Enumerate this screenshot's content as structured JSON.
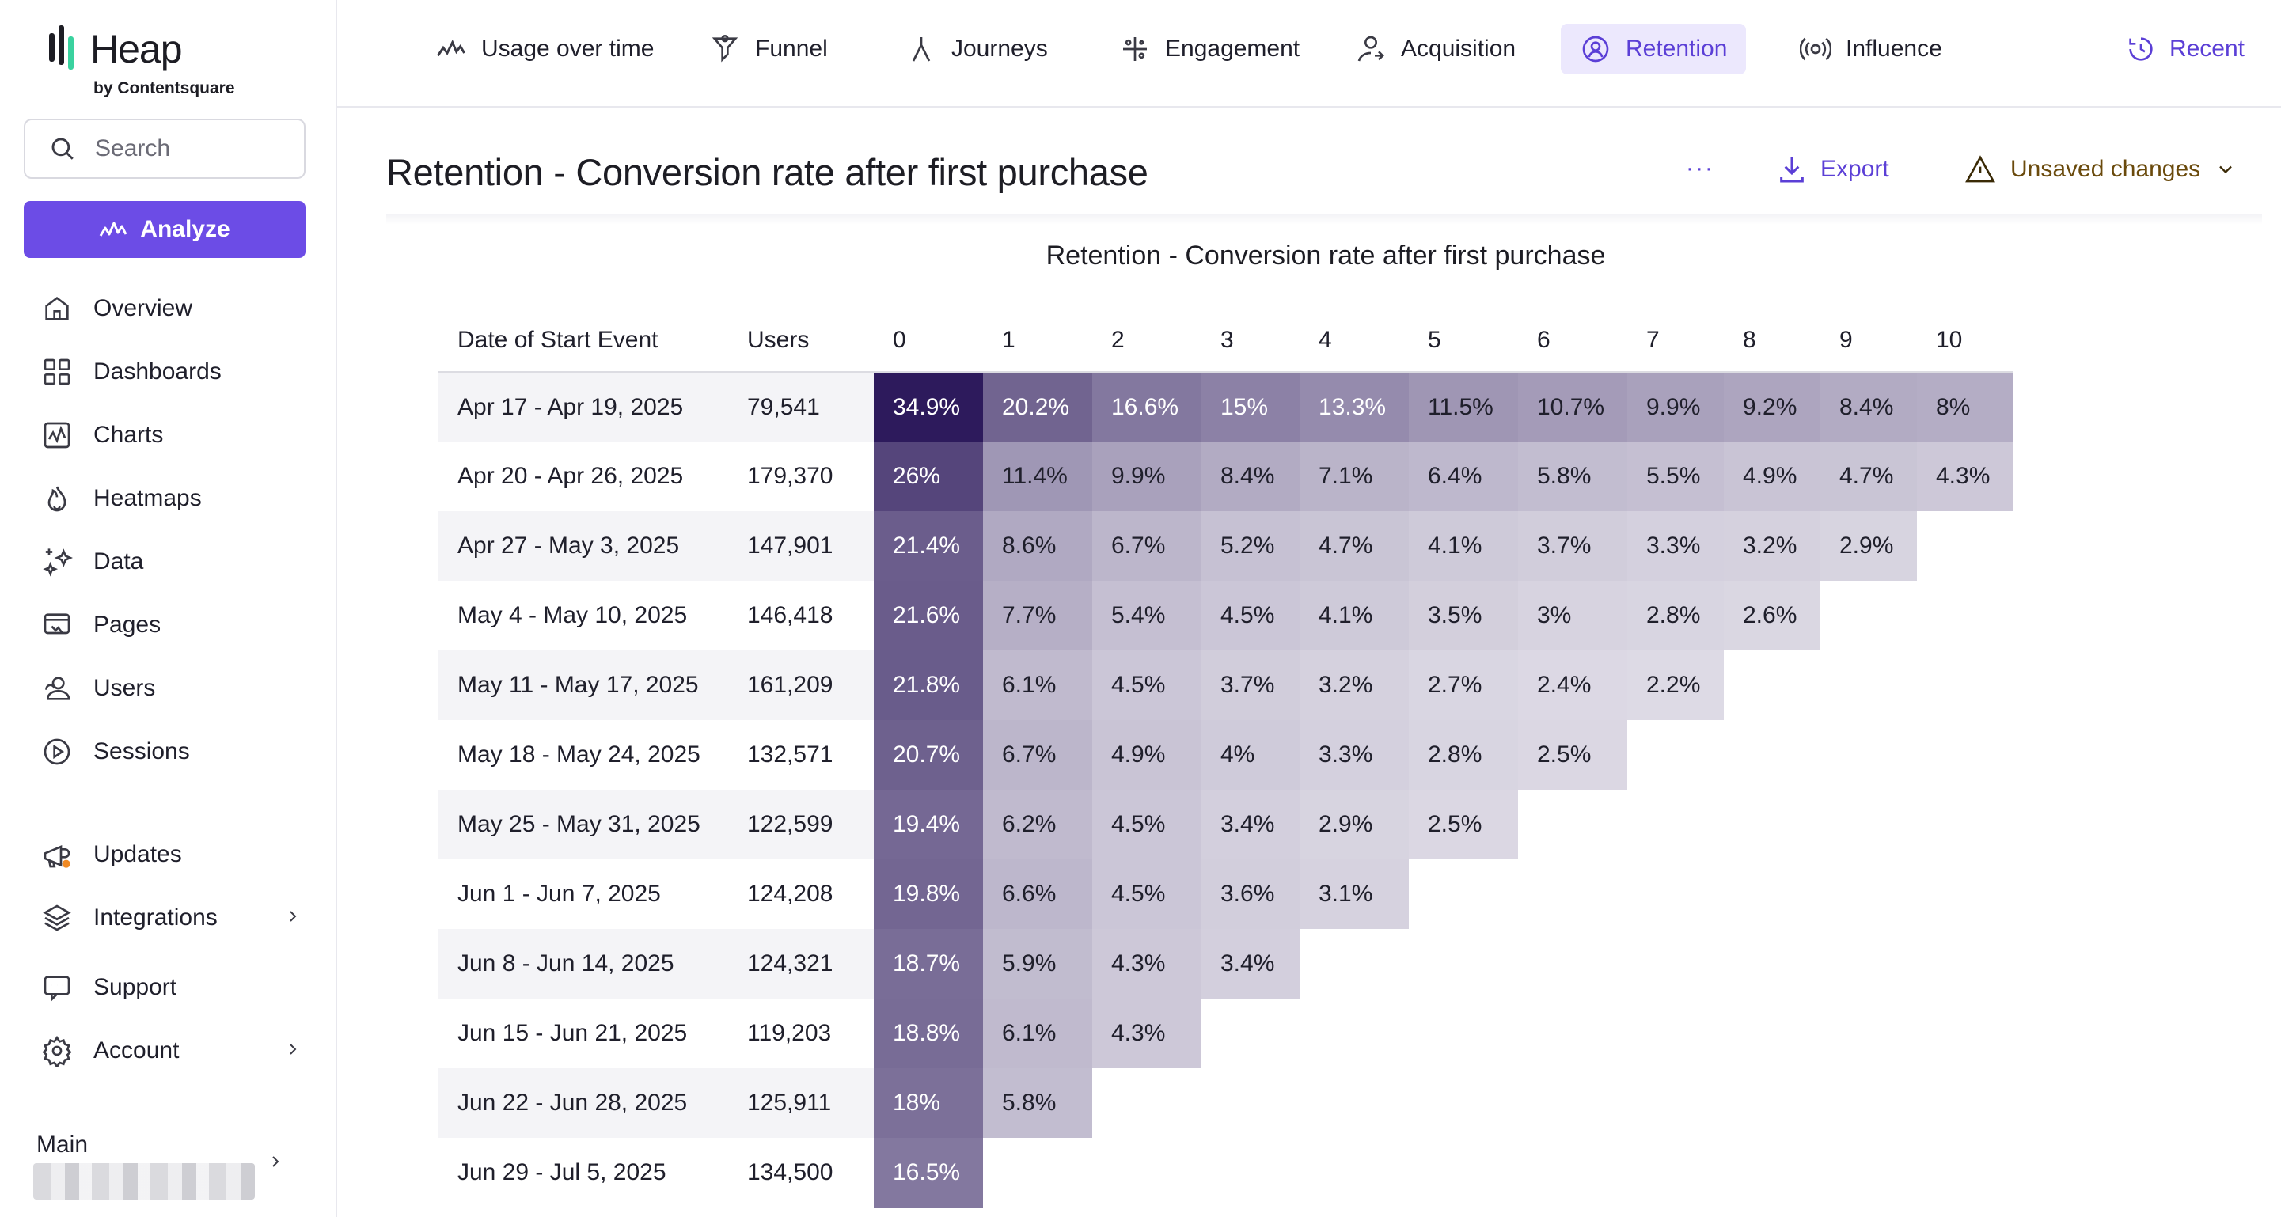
{
  "brand": {
    "name": "Heap",
    "sub": "by Contentsquare"
  },
  "search": {
    "placeholder": "Search"
  },
  "analyze_label": "Analyze",
  "sidebar": {
    "items": [
      {
        "label": "Overview",
        "icon": "home-icon"
      },
      {
        "label": "Dashboards",
        "icon": "grid-icon"
      },
      {
        "label": "Charts",
        "icon": "chart-icon"
      },
      {
        "label": "Heatmaps",
        "icon": "flame-icon"
      },
      {
        "label": "Data",
        "icon": "sparkle-icon"
      },
      {
        "label": "Pages",
        "icon": "pages-icon"
      },
      {
        "label": "Users",
        "icon": "users-icon"
      },
      {
        "label": "Sessions",
        "icon": "play-icon"
      }
    ],
    "bottom_items": [
      {
        "label": "Updates",
        "icon": "megaphone-icon"
      },
      {
        "label": "Integrations",
        "icon": "layers-icon"
      },
      {
        "label": "Support",
        "icon": "chat-icon"
      },
      {
        "label": "Account",
        "icon": "gear-icon"
      }
    ],
    "workspace_label": "Main"
  },
  "tabs": [
    {
      "label": "Usage over time"
    },
    {
      "label": "Funnel"
    },
    {
      "label": "Journeys"
    },
    {
      "label": "Engagement"
    },
    {
      "label": "Acquisition"
    },
    {
      "label": "Retention"
    },
    {
      "label": "Influence"
    }
  ],
  "recent_label": "Recent",
  "header": {
    "title": "Retention - Conversion rate after first purchase",
    "more_label": "···",
    "export_label": "Export",
    "unsaved_label": "Unsaved changes"
  },
  "colors": {
    "accent": "#6c4ce6",
    "accent_text": "#5b3fd6",
    "heat_base": "#3b2a6b"
  },
  "chart_data": {
    "type": "table",
    "title": "Retention - Conversion rate after first purchase",
    "columns": [
      "Date of Start Event",
      "Users",
      "0",
      "1",
      "2",
      "3",
      "4",
      "5",
      "6",
      "7",
      "8",
      "9",
      "10"
    ],
    "rows": [
      {
        "date": "Apr 17 - Apr 19, 2025",
        "users": "79,541",
        "values": [
          34.9,
          20.2,
          16.6,
          15,
          13.3,
          11.5,
          10.7,
          9.9,
          9.2,
          8.4,
          8
        ]
      },
      {
        "date": "Apr 20 - Apr 26, 2025",
        "users": "179,370",
        "values": [
          26,
          11.4,
          9.9,
          8.4,
          7.1,
          6.4,
          5.8,
          5.5,
          4.9,
          4.7,
          4.3
        ]
      },
      {
        "date": "Apr 27 - May 3, 2025",
        "users": "147,901",
        "values": [
          21.4,
          8.6,
          6.7,
          5.2,
          4.7,
          4.1,
          3.7,
          3.3,
          3.2,
          2.9
        ]
      },
      {
        "date": "May 4 - May 10, 2025",
        "users": "146,418",
        "values": [
          21.6,
          7.7,
          5.4,
          4.5,
          4.1,
          3.5,
          3,
          2.8,
          2.6
        ]
      },
      {
        "date": "May 11 - May 17, 2025",
        "users": "161,209",
        "values": [
          21.8,
          6.1,
          4.5,
          3.7,
          3.2,
          2.7,
          2.4,
          2.2
        ]
      },
      {
        "date": "May 18 - May 24, 2025",
        "users": "132,571",
        "values": [
          20.7,
          6.7,
          4.9,
          4,
          3.3,
          2.8,
          2.5
        ]
      },
      {
        "date": "May 25 - May 31, 2025",
        "users": "122,599",
        "values": [
          19.4,
          6.2,
          4.5,
          3.4,
          2.9,
          2.5
        ]
      },
      {
        "date": "Jun 1 - Jun 7, 2025",
        "users": "124,208",
        "values": [
          19.8,
          6.6,
          4.5,
          3.6,
          3.1
        ]
      },
      {
        "date": "Jun 8 - Jun 14, 2025",
        "users": "124,321",
        "values": [
          18.7,
          5.9,
          4.3,
          3.4
        ]
      },
      {
        "date": "Jun 15 - Jun 21, 2025",
        "users": "119,203",
        "values": [
          18.8,
          6.1,
          4.3
        ]
      },
      {
        "date": "Jun 22 - Jun 28, 2025",
        "users": "125,911",
        "values": [
          18,
          5.8
        ]
      },
      {
        "date": "Jun 29 - Jul 5, 2025",
        "users": "134,500",
        "values": [
          16.5
        ]
      }
    ]
  }
}
